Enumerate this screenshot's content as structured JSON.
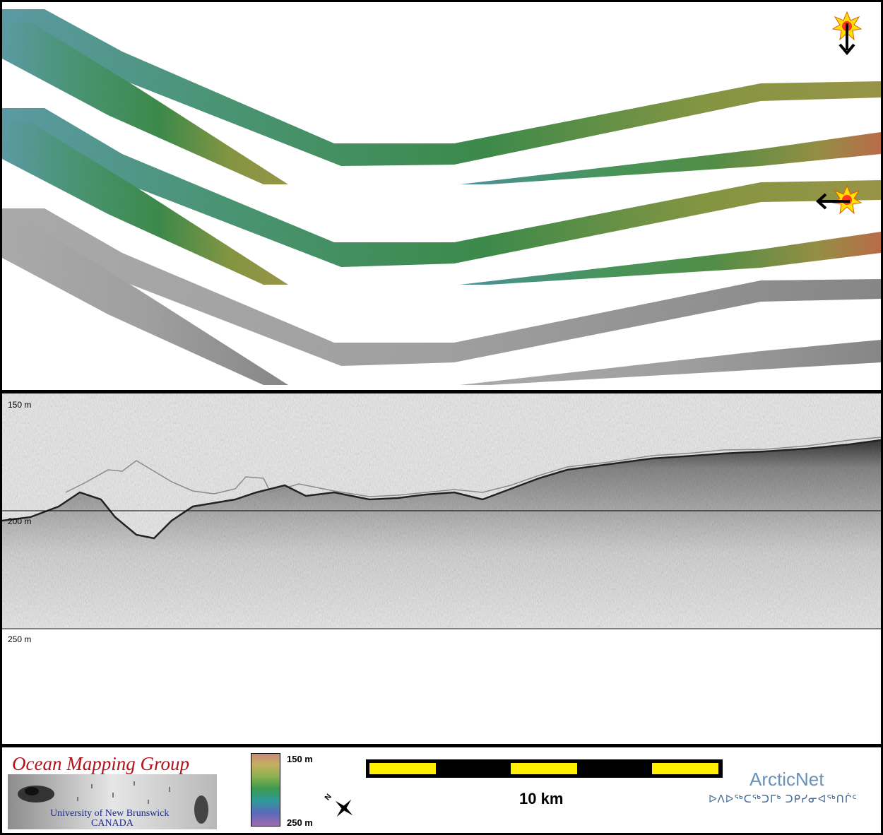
{
  "profile": {
    "depth_labels": [
      "150 m",
      "200 m",
      "250 m"
    ]
  },
  "legend": {
    "depth_top": "150 m",
    "depth_bottom": "250 m"
  },
  "scale_bar": {
    "label": "10 km"
  },
  "logos": {
    "omg_title": "Ocean Mapping Group",
    "omg_university": "University of New Brunswick",
    "omg_country": "CANADA",
    "arcticnet_title": "ArcticNet",
    "arcticnet_syllabics": "ᐅᐱᐅᖅᑕᖅᑐᒥᒃ ᑐᑭᓯᓂᐊᖅᑎᒌᑦ"
  },
  "compass": {
    "north_letter": "N"
  },
  "colors": {
    "scale_yellow": "#ffee00",
    "bathy_deep": "#5a9aa8",
    "bathy_mid": "#3f8f4e",
    "bathy_shallow": "#b88a4a",
    "backscatter": "#a9a9a9",
    "omg_red": "#b3121b",
    "arcticnet_blue": "#6a8fb8"
  },
  "icons": [
    "sun-icon",
    "arrow-down-icon",
    "arrow-left-icon",
    "compass-icon"
  ]
}
